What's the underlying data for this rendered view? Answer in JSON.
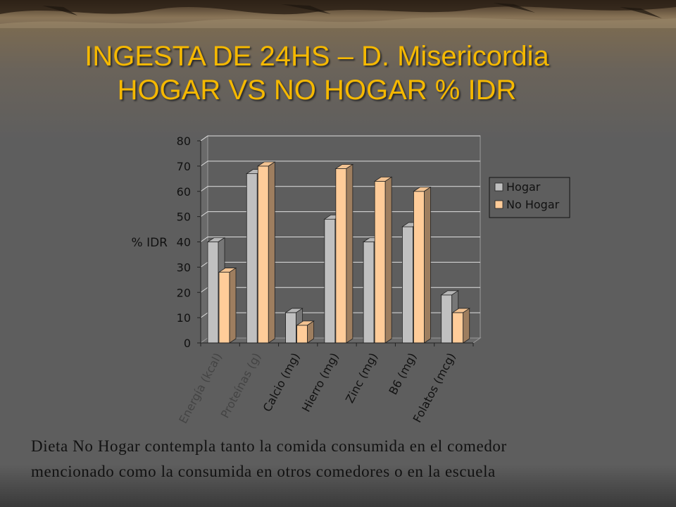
{
  "slide": {
    "title_line1": "INGESTA DE 24HS – D. Misericordia",
    "title_line2": "HOGAR VS NO HOGAR % IDR",
    "note_line1": "Dieta No Hogar contempla tanto la comida consumida en el comedor",
    "note_line2": "mencionado como la consumida en otros comedores o en la escuela"
  },
  "colors": {
    "title": "#f5b800",
    "hogar": "#c0c0c0",
    "no_hogar": "#ffcc99",
    "plot_bg": "#5e5e5e",
    "grid": "#e0e0e0"
  },
  "chart_data": {
    "type": "bar",
    "categories": [
      "Energía (kcal)",
      "Proteínas (g)",
      "Calcio (mg)",
      "Hierro (mg)",
      "Zinc (mg)",
      "B6 (mg)",
      "Folatos (mcg)"
    ],
    "series": [
      {
        "name": "Hogar",
        "values": [
          40,
          67,
          12,
          49,
          40,
          46,
          19
        ]
      },
      {
        "name": "No Hogar",
        "values": [
          28,
          70,
          7,
          69,
          64,
          60,
          12
        ]
      }
    ],
    "title": "",
    "xlabel": "",
    "ylabel": "% IDR",
    "ylim": [
      0,
      80
    ],
    "yticks": [
      0,
      10,
      20,
      30,
      40,
      50,
      60,
      70,
      80
    ],
    "grid": true,
    "legend_position": "right",
    "style": "3d-bar"
  }
}
